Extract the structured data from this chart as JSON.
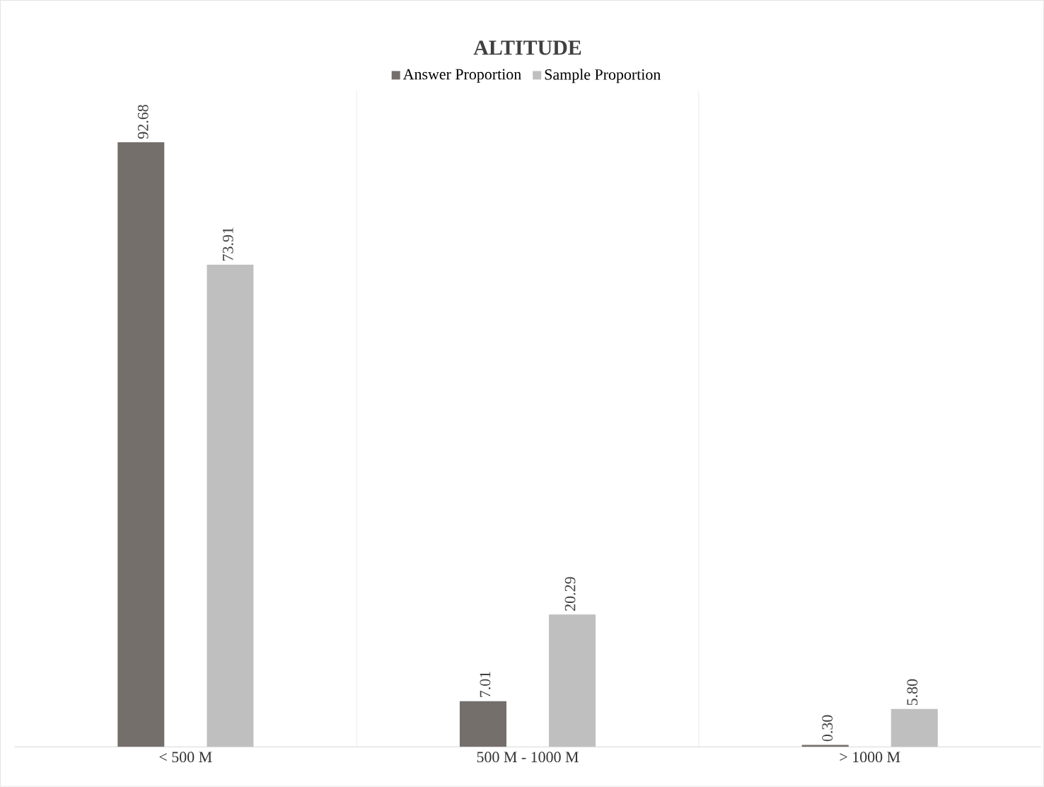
{
  "chart_data": {
    "type": "bar",
    "title": "ALTITUDE",
    "categories": [
      "< 500 M",
      "500 M - 1000 M",
      "> 1000 M"
    ],
    "series": [
      {
        "name": "Answer Proportion",
        "color": "#756f6c",
        "values": [
          92.68,
          7.01,
          0.3
        ],
        "value_labels": [
          "92.68",
          "7.01",
          "0.30"
        ]
      },
      {
        "name": "Sample Proportion",
        "color": "#bfbfbf",
        "values": [
          73.91,
          20.29,
          5.8
        ],
        "value_labels": [
          "73.91",
          "20.29",
          "5.80"
        ]
      }
    ],
    "grid": "x",
    "legend": "top",
    "tick_labels": "x"
  }
}
